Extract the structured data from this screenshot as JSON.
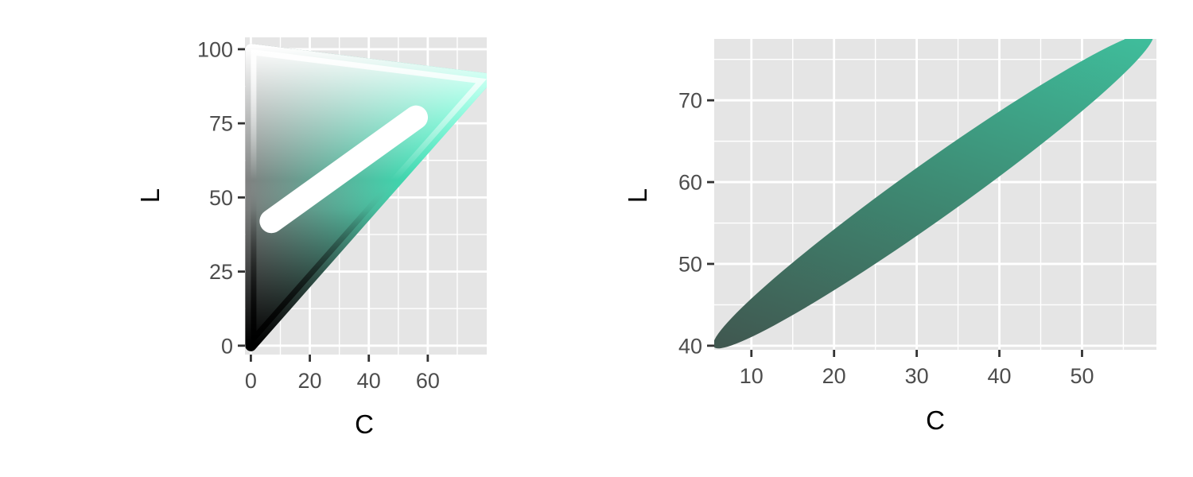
{
  "colors": {
    "panel_background": "#e5e5e5",
    "grid_major": "#ffffff",
    "grid_minor": "#f2f2f2",
    "tick_mark": "#333333",
    "hue_pure": "#1effc4",
    "cloud_light": "#3fc7a3",
    "cloud_dark": "#414f4a",
    "gamut_black": "#000000",
    "gamut_white": "#ffffff"
  },
  "chart_data": [
    {
      "type": "area",
      "description_kind": "chroma-lightness gamut slice with an elliptical excluded region",
      "xlabel": "C",
      "ylabel": "L",
      "xlim": [
        -2,
        80
      ],
      "ylim": [
        -3,
        104
      ],
      "x_ticks": [
        0,
        20,
        40,
        60
      ],
      "y_ticks": [
        0,
        25,
        50,
        75,
        100
      ],
      "x_tick_labels": [
        "0",
        "20",
        "40",
        "60"
      ],
      "y_tick_labels": [
        "0",
        "25",
        "50",
        "75",
        "100"
      ],
      "grid": true,
      "legend": "none",
      "gamut_boundary": [
        [
          0,
          0
        ],
        [
          80,
          90
        ],
        [
          0,
          100
        ]
      ],
      "cusp": {
        "C": 80,
        "L": 90
      },
      "ellipse_hole": {
        "from": {
          "C": 7,
          "L": 42
        },
        "to": {
          "C": 56,
          "L": 77
        }
      }
    },
    {
      "type": "scatter",
      "description_kind": "elliptical point cloud colored by its own hcl color",
      "xlabel": "C",
      "ylabel": "L",
      "xlim": [
        5.5,
        59
      ],
      "ylim": [
        39.5,
        77.5
      ],
      "x_ticks": [
        10,
        20,
        30,
        40,
        50
      ],
      "y_ticks": [
        40,
        50,
        60,
        70
      ],
      "x_tick_labels": [
        "10",
        "20",
        "30",
        "40",
        "50"
      ],
      "y_tick_labels": [
        "40",
        "50",
        "60",
        "70"
      ],
      "grid": true,
      "legend": "none",
      "ellipse": {
        "from": {
          "C": 7,
          "L": 41
        },
        "to": {
          "C": 57,
          "L": 77
        }
      }
    }
  ]
}
